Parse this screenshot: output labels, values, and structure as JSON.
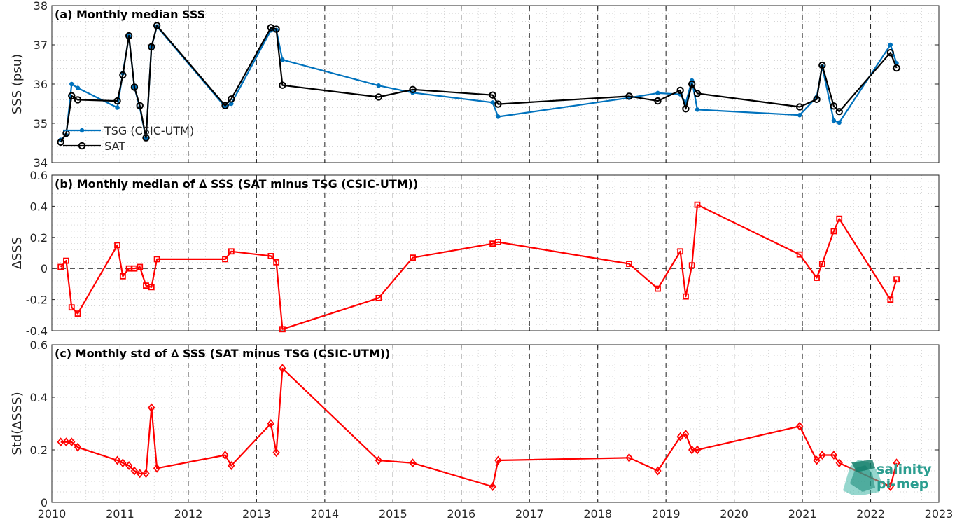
{
  "chart_data": [
    {
      "type": "line",
      "title": "(a) Monthly median SSS",
      "ylabel": "SSS (psu)",
      "xlim": [
        2010,
        2023
      ],
      "ylim": [
        34,
        38
      ],
      "yticks": [
        34,
        35,
        36,
        37,
        38
      ],
      "xticks": [
        2010,
        2011,
        2012,
        2013,
        2014,
        2015,
        2016,
        2017,
        2018,
        2019,
        2020,
        2021,
        2022,
        2023
      ],
      "grid": "dotted",
      "legend": "bottom-left",
      "series": [
        {
          "name": "TSG (CSIC-UTM)",
          "color": "#0072BD",
          "marker": "dot",
          "x": [
            2010.13,
            2010.21,
            2010.29,
            2010.38,
            2010.96,
            2011.04,
            2011.13,
            2011.21,
            2011.29,
            2011.38,
            2011.46,
            2011.54,
            2012.54,
            2012.63,
            2013.21,
            2013.29,
            2013.38,
            2014.79,
            2015.29,
            2016.46,
            2016.54,
            2018.46,
            2018.88,
            2019.21,
            2019.29,
            2019.38,
            2019.46,
            2020.96,
            2021.21,
            2021.29,
            2021.46,
            2021.54,
            2022.29,
            2022.38
          ],
          "y": [
            34.58,
            34.7,
            36.0,
            35.9,
            35.4,
            36.28,
            37.22,
            35.92,
            35.4,
            34.62,
            36.95,
            37.47,
            35.42,
            35.5,
            37.37,
            37.38,
            36.62,
            35.96,
            35.78,
            35.53,
            35.17,
            35.65,
            35.77,
            35.74,
            35.52,
            36.09,
            35.35,
            35.21,
            35.67,
            36.45,
            35.07,
            35.02,
            37.0,
            36.53
          ]
        },
        {
          "name": "SAT",
          "color": "#000000",
          "marker": "circle",
          "x": [
            2010.13,
            2010.21,
            2010.29,
            2010.38,
            2010.96,
            2011.04,
            2011.13,
            2011.21,
            2011.29,
            2011.38,
            2011.46,
            2011.54,
            2012.54,
            2012.63,
            2013.21,
            2013.29,
            2013.38,
            2014.79,
            2015.29,
            2016.46,
            2016.54,
            2018.46,
            2018.88,
            2019.21,
            2019.29,
            2019.38,
            2019.46,
            2020.96,
            2021.21,
            2021.29,
            2021.46,
            2021.54,
            2022.29,
            2022.38
          ],
          "y": [
            34.52,
            34.75,
            35.7,
            35.6,
            35.57,
            36.23,
            37.23,
            35.92,
            35.45,
            34.63,
            36.95,
            37.49,
            35.45,
            35.62,
            37.44,
            37.4,
            35.97,
            35.67,
            35.86,
            35.72,
            35.49,
            35.69,
            35.57,
            35.84,
            35.37,
            36.0,
            35.76,
            35.42,
            35.61,
            36.48,
            35.44,
            35.3,
            36.8,
            36.41
          ]
        }
      ]
    },
    {
      "type": "line",
      "title": "(b) Monthly median of ∆ SSS (SAT minus TSG (CSIC-UTM))",
      "ylabel": "∆SSS",
      "xlim": [
        2010,
        2023
      ],
      "ylim": [
        -0.4,
        0.6
      ],
      "yticks": [
        -0.4,
        -0.2,
        0,
        0.2,
        0.4,
        0.6
      ],
      "ytick_labels": [
        "-0.4",
        "-0.2",
        "0",
        "0.2",
        "0.4",
        "0.6"
      ],
      "grid": "dotted",
      "zero_line": true,
      "series": [
        {
          "color": "#FF0000",
          "marker": "square",
          "x": [
            2010.13,
            2010.21,
            2010.29,
            2010.38,
            2010.96,
            2011.04,
            2011.13,
            2011.21,
            2011.29,
            2011.38,
            2011.46,
            2011.54,
            2012.54,
            2012.63,
            2013.21,
            2013.29,
            2013.38,
            2014.79,
            2015.29,
            2016.46,
            2016.54,
            2018.46,
            2018.88,
            2019.21,
            2019.29,
            2019.38,
            2019.46,
            2020.96,
            2021.21,
            2021.29,
            2021.46,
            2021.54,
            2022.29,
            2022.38
          ],
          "y": [
            0.01,
            0.05,
            -0.25,
            -0.29,
            0.15,
            -0.05,
            0.0,
            0.0,
            0.01,
            -0.11,
            -0.12,
            0.06,
            0.06,
            0.11,
            0.08,
            0.04,
            -0.39,
            -0.19,
            0.07,
            0.16,
            0.17,
            0.03,
            -0.13,
            0.11,
            -0.18,
            0.02,
            0.41,
            0.09,
            -0.06,
            0.03,
            0.24,
            0.32,
            -0.2,
            -0.07
          ]
        }
      ]
    },
    {
      "type": "line",
      "title": "(c) Monthly std of ∆ SSS (SAT minus TSG (CSIC-UTM))",
      "ylabel": "Std(∆SSS)",
      "xlabel": "",
      "xlim": [
        2010,
        2023
      ],
      "ylim": [
        0,
        0.6
      ],
      "yticks": [
        0,
        0.2,
        0.4,
        0.6
      ],
      "ytick_labels": [
        "0",
        "0.2",
        "0.4",
        "0.6"
      ],
      "grid": "dotted",
      "series": [
        {
          "color": "#FF0000",
          "marker": "diamond",
          "x": [
            2010.13,
            2010.21,
            2010.29,
            2010.38,
            2010.96,
            2011.04,
            2011.13,
            2011.21,
            2011.29,
            2011.38,
            2011.46,
            2011.54,
            2012.54,
            2012.63,
            2013.21,
            2013.29,
            2013.38,
            2014.79,
            2015.29,
            2016.46,
            2016.54,
            2018.46,
            2018.88,
            2019.21,
            2019.29,
            2019.38,
            2019.46,
            2020.96,
            2021.21,
            2021.29,
            2021.46,
            2021.54,
            2022.29,
            2022.38
          ],
          "y": [
            0.23,
            0.23,
            0.23,
            0.21,
            0.16,
            0.15,
            0.14,
            0.12,
            0.11,
            0.11,
            0.36,
            0.13,
            0.18,
            0.14,
            0.3,
            0.19,
            0.51,
            0.16,
            0.15,
            0.06,
            0.16,
            0.17,
            0.12,
            0.25,
            0.26,
            0.2,
            0.2,
            0.29,
            0.16,
            0.18,
            0.18,
            0.15,
            0.06,
            0.15
          ]
        }
      ]
    }
  ],
  "logo": {
    "line1": "salinity",
    "line2": "pi-mep",
    "color": "#2a9d8f"
  }
}
